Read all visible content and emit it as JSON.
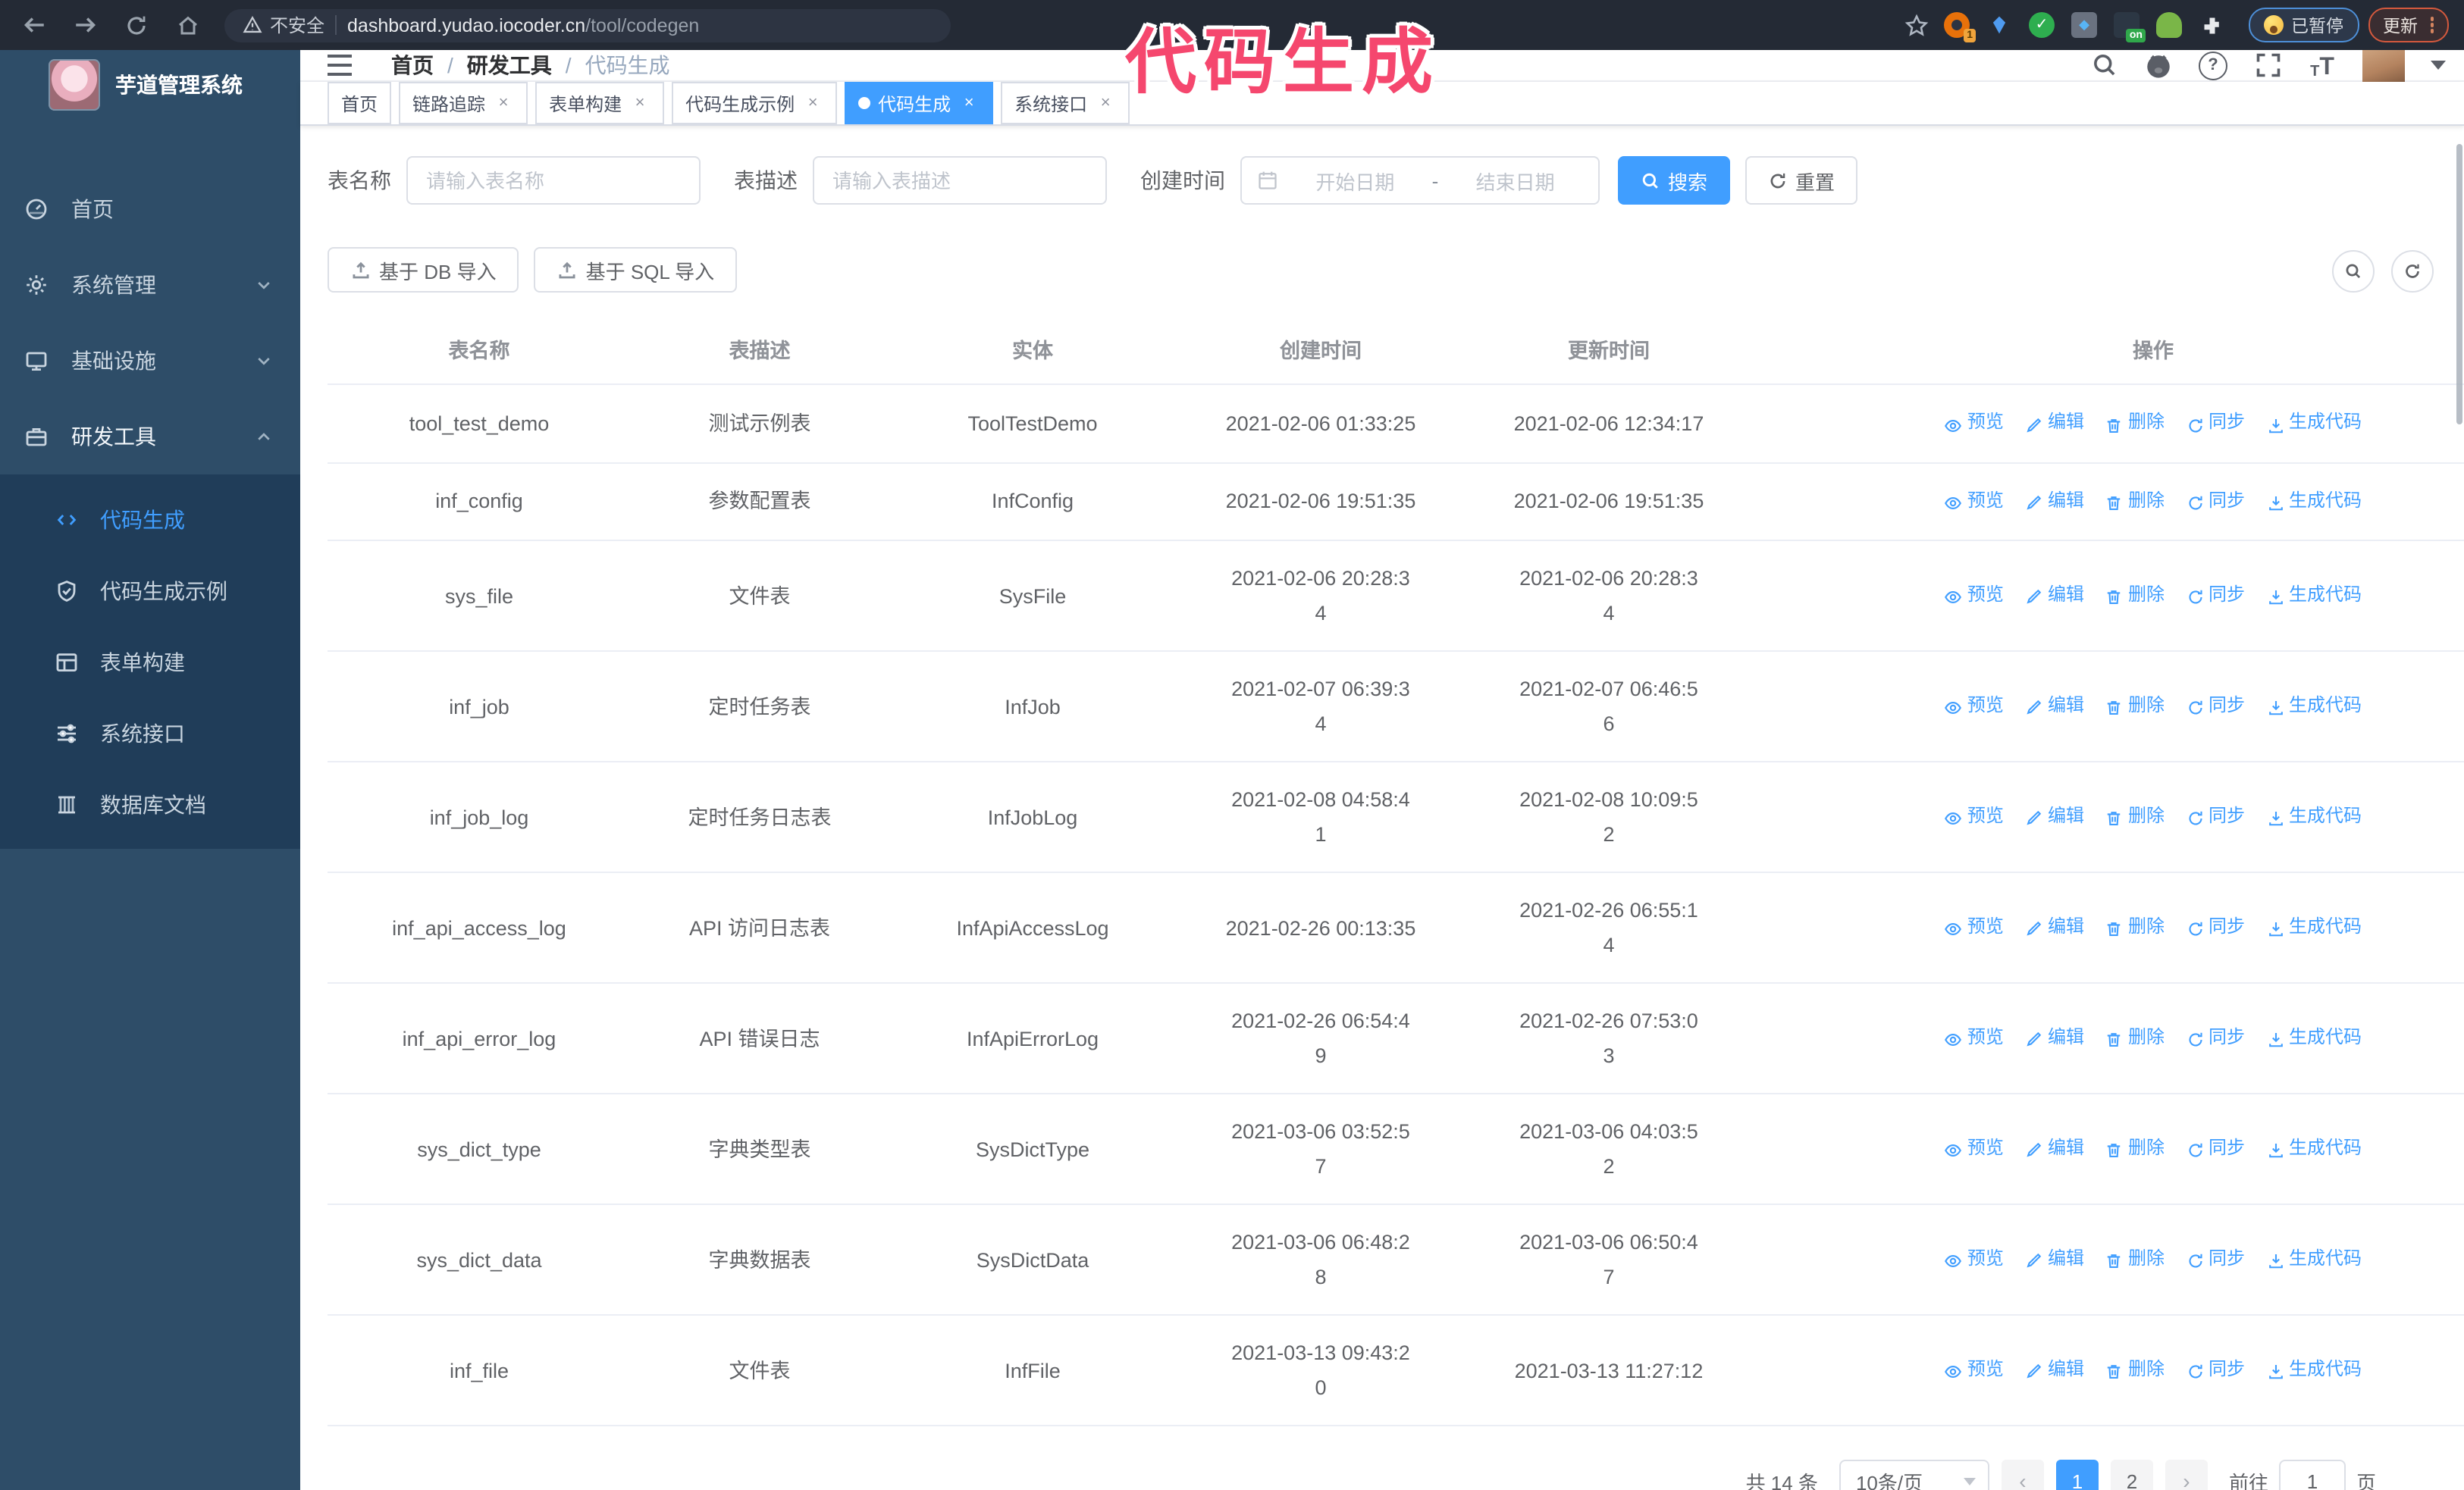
{
  "colors": {
    "accent": "#409eff",
    "sidebar_bg": "#2e4d68",
    "submenu_bg": "#203d59",
    "annotation": "#f5476e",
    "active_tag": "#409eff"
  },
  "annotation": {
    "title": "代码生成"
  },
  "browser": {
    "security_label": "不安全",
    "url_host": "dashboard.yudao.iocoder.cn",
    "url_path": "/tool/codegen",
    "extension_count_badge": "1",
    "extension_on_badge": "on",
    "paused_badge": "已暂停",
    "update_badge": "更新"
  },
  "sidebar": {
    "app_title": "芋道管理系统",
    "items": [
      {
        "label": "首页",
        "icon": "dashboard-icon",
        "expandable": false,
        "expanded": false
      },
      {
        "label": "系统管理",
        "icon": "gear-icon",
        "expandable": true,
        "expanded": false
      },
      {
        "label": "基础设施",
        "icon": "monitor-icon",
        "expandable": true,
        "expanded": false
      },
      {
        "label": "研发工具",
        "icon": "tools-icon",
        "expandable": true,
        "expanded": true
      }
    ],
    "submenu": [
      {
        "label": "代码生成",
        "icon": "code-icon",
        "active": true
      },
      {
        "label": "代码生成示例",
        "icon": "shield-check-icon",
        "active": false
      },
      {
        "label": "表单构建",
        "icon": "form-icon",
        "active": false
      },
      {
        "label": "系统接口",
        "icon": "sliders-icon",
        "active": false
      },
      {
        "label": "数据库文档",
        "icon": "database-icon",
        "active": false
      }
    ]
  },
  "header": {
    "breadcrumb": [
      "首页",
      "研发工具",
      "代码生成"
    ]
  },
  "tabs": [
    {
      "label": "首页",
      "closable": false,
      "active": false
    },
    {
      "label": "链路追踪",
      "closable": true,
      "active": false
    },
    {
      "label": "表单构建",
      "closable": true,
      "active": false
    },
    {
      "label": "代码生成示例",
      "closable": true,
      "active": false
    },
    {
      "label": "代码生成",
      "closable": true,
      "active": true
    },
    {
      "label": "系统接口",
      "closable": true,
      "active": false
    }
  ],
  "filters": {
    "table_name_label": "表名称",
    "table_name_placeholder": "请输入表名称",
    "table_desc_label": "表描述",
    "table_desc_placeholder": "请输入表描述",
    "create_time_label": "创建时间",
    "start_date_placeholder": "开始日期",
    "date_separator": "-",
    "end_date_placeholder": "结束日期",
    "search_label": "搜索",
    "reset_label": "重置"
  },
  "toolbar": {
    "import_db_label": "基于 DB 导入",
    "import_sql_label": "基于 SQL 导入"
  },
  "table": {
    "columns": [
      "表名称",
      "表描述",
      "实体",
      "创建时间",
      "更新时间",
      "操作"
    ],
    "actions": [
      "预览",
      "编辑",
      "删除",
      "同步",
      "生成代码"
    ],
    "rows": [
      {
        "name": "tool_test_demo",
        "desc": "测试示例表",
        "entity": "ToolTestDemo",
        "created": "2021-02-06 01:33:25",
        "created_wrap": false,
        "updated": "2021-02-06 12:34:17",
        "updated_wrap": false
      },
      {
        "name": "inf_config",
        "desc": "参数配置表",
        "entity": "InfConfig",
        "created": "2021-02-06 19:51:35",
        "created_wrap": false,
        "updated": "2021-02-06 19:51:35",
        "updated_wrap": false
      },
      {
        "name": "sys_file",
        "desc": "文件表",
        "entity": "SysFile",
        "created": "2021-02-06 20:28:34",
        "created_wrap": true,
        "updated": "2021-02-06 20:28:34",
        "updated_wrap": true
      },
      {
        "name": "inf_job",
        "desc": "定时任务表",
        "entity": "InfJob",
        "created": "2021-02-07 06:39:34",
        "created_wrap": true,
        "updated": "2021-02-07 06:46:56",
        "updated_wrap": true
      },
      {
        "name": "inf_job_log",
        "desc": "定时任务日志表",
        "entity": "InfJobLog",
        "created": "2021-02-08 04:58:41",
        "created_wrap": true,
        "updated": "2021-02-08 10:09:52",
        "updated_wrap": true
      },
      {
        "name": "inf_api_access_log",
        "desc": "API 访问日志表",
        "entity": "InfApiAccessLog",
        "created": "2021-02-26 00:13:35",
        "created_wrap": false,
        "updated": "2021-02-26 06:55:14",
        "updated_wrap": true
      },
      {
        "name": "inf_api_error_log",
        "desc": "API 错误日志",
        "entity": "InfApiErrorLog",
        "created": "2021-02-26 06:54:49",
        "created_wrap": true,
        "updated": "2021-02-26 07:53:03",
        "updated_wrap": true
      },
      {
        "name": "sys_dict_type",
        "desc": "字典类型表",
        "entity": "SysDictType",
        "created": "2021-03-06 03:52:57",
        "created_wrap": true,
        "updated": "2021-03-06 04:03:52",
        "updated_wrap": true
      },
      {
        "name": "sys_dict_data",
        "desc": "字典数据表",
        "entity": "SysDictData",
        "created": "2021-03-06 06:48:28",
        "created_wrap": true,
        "updated": "2021-03-06 06:50:47",
        "updated_wrap": true
      },
      {
        "name": "inf_file",
        "desc": "文件表",
        "entity": "InfFile",
        "created": "2021-03-13 09:43:20",
        "created_wrap": true,
        "updated": "2021-03-13 11:27:12",
        "updated_wrap": false
      }
    ]
  },
  "pagination": {
    "total_label": "共 14 条",
    "page_size_label": "10条/页",
    "pages": [
      "1",
      "2"
    ],
    "active_page": "1",
    "prev_label": "‹",
    "next_label": "›",
    "goto_label": "前往",
    "goto_value": "1",
    "goto_suffix": "页"
  }
}
